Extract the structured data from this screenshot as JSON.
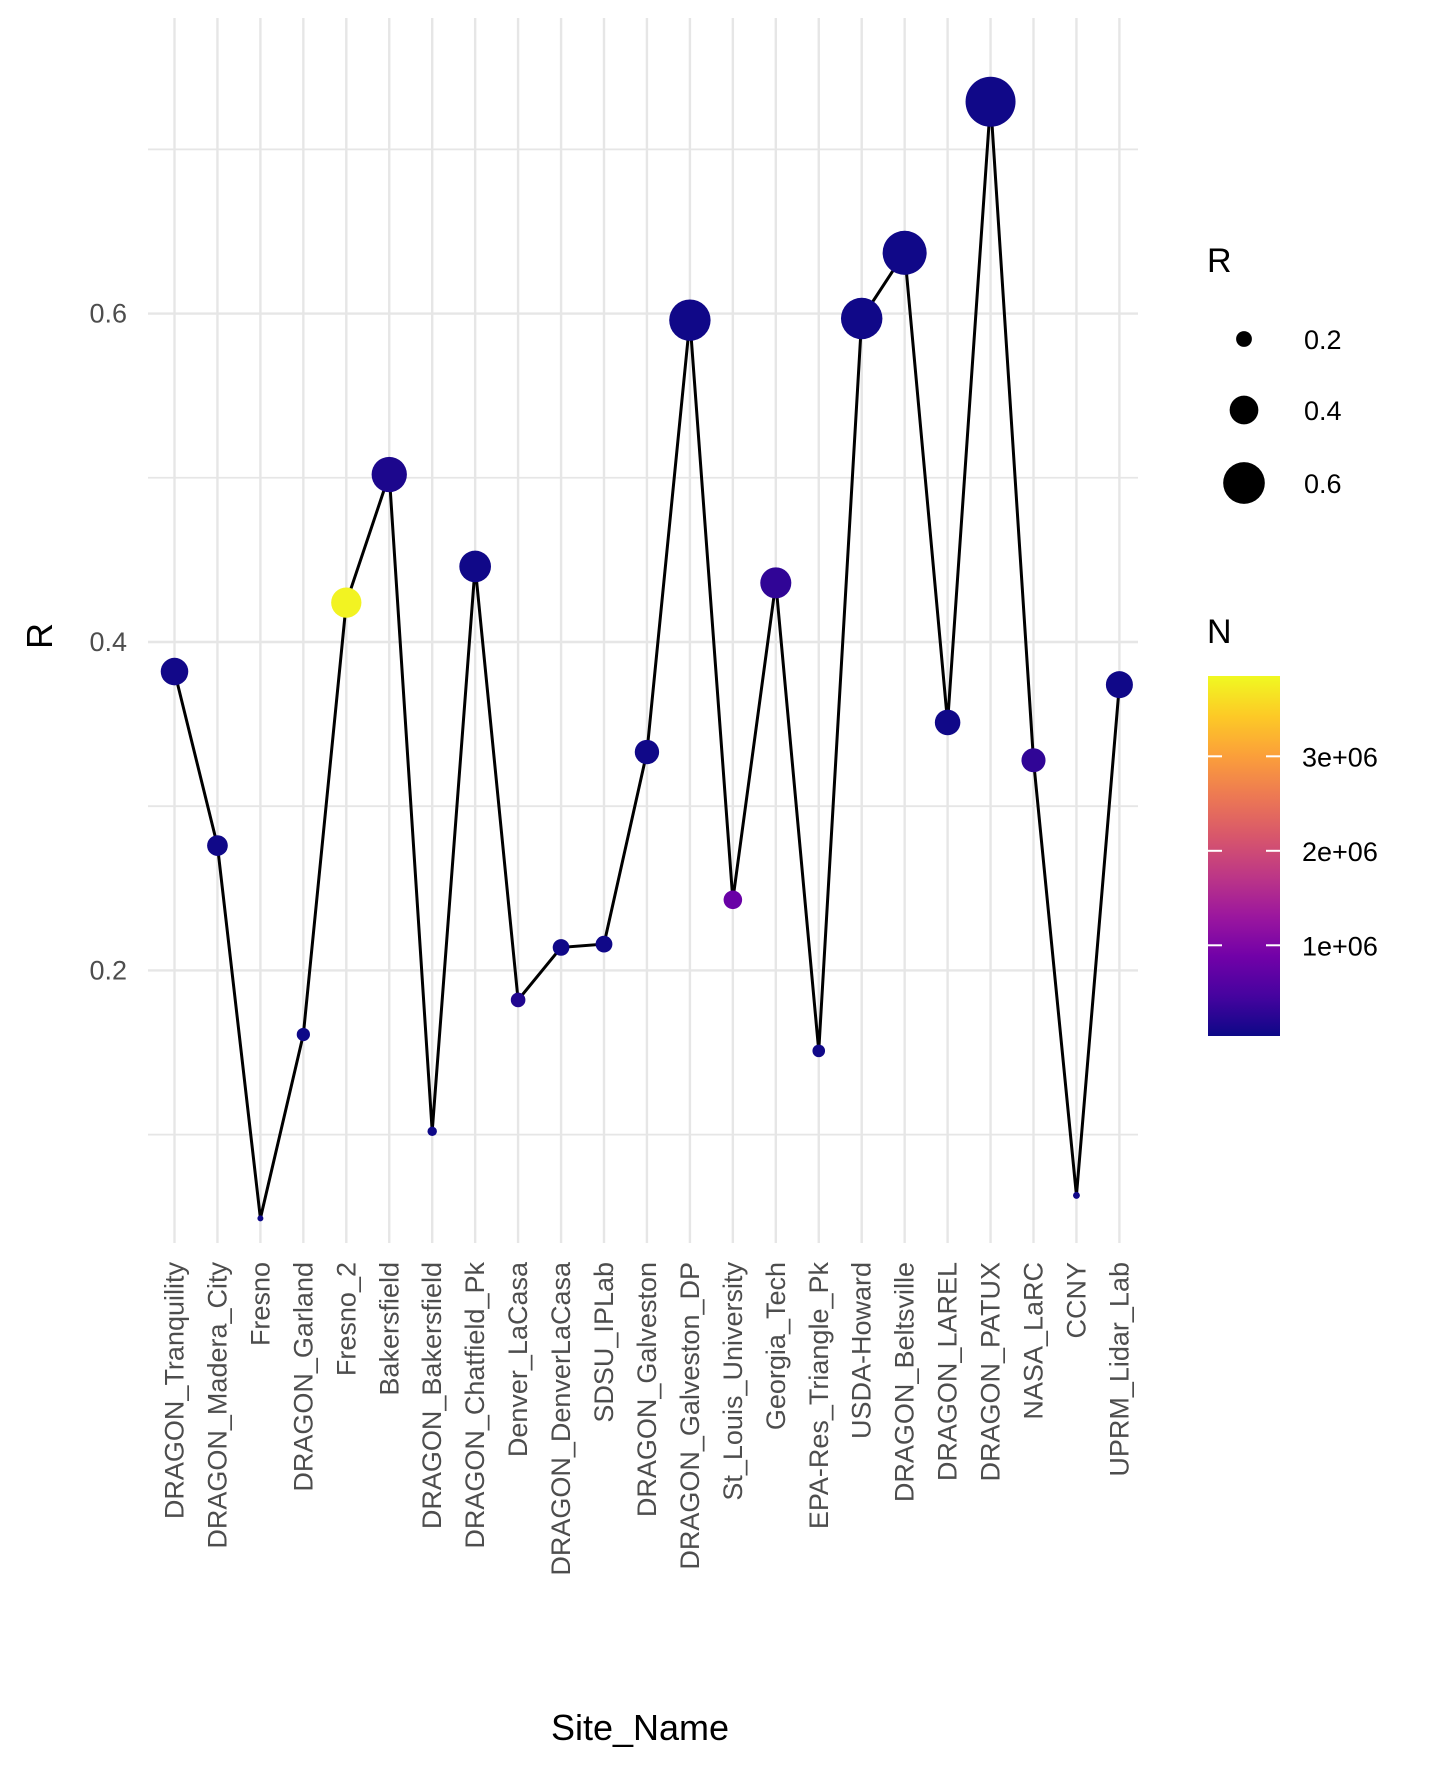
{
  "chart_data": {
    "type": "scatter",
    "xlabel": "Site_Name",
    "ylabel": "R",
    "y_ticks": [
      "0.2",
      "0.4",
      "0.6"
    ],
    "ylim": [
      0.034,
      0.78
    ],
    "grid": true,
    "categories": [
      "DRAGON_Tranquility",
      "DRAGON_Madera_City",
      "Fresno",
      "DRAGON_Garland",
      "Fresno_2",
      "Bakersfield",
      "DRAGON_Bakersfield",
      "DRAGON_Chatfield_Pk",
      "Denver_LaCasa",
      "DRAGON_DenverLaCasa",
      "SDSU_IPLab",
      "DRAGON_Galveston",
      "DRAGON_Galveston_DP",
      "St_Louis_University",
      "Georgia_Tech",
      "EPA-Res_Triangle_Pk",
      "USDA-Howard",
      "DRAGON_Beltsville",
      "DRAGON_LAREL",
      "DRAGON_PATUX",
      "NASA_LaRC",
      "CCNY",
      "UPRM_Lidar_Lab"
    ],
    "series": [
      {
        "values": [
          0.382,
          0.276,
          0.049,
          0.161,
          0.424,
          0.502,
          0.102,
          0.446,
          0.182,
          0.214,
          0.216,
          0.333,
          0.596,
          0.243,
          0.436,
          0.151,
          0.597,
          0.637,
          0.351,
          0.729,
          0.328,
          0.063,
          0.374
        ],
        "n_values": [
          80000,
          60000,
          50000,
          50000,
          3800000,
          150000,
          50000,
          60000,
          180000,
          60000,
          60000,
          60000,
          60000,
          800000,
          300000,
          60000,
          60000,
          60000,
          60000,
          60000,
          300000,
          60000,
          60000
        ]
      }
    ],
    "line_color": "#000000",
    "legend": {
      "position": "right",
      "size": {
        "title": "R",
        "labels": [
          "0.2",
          "0.4",
          "0.6"
        ],
        "values": [
          0.2,
          0.4,
          0.6
        ]
      },
      "color": {
        "title": "N",
        "labels": [
          "1e+06",
          "2e+06",
          "3e+06"
        ],
        "values": [
          1000000,
          2000000,
          3000000
        ],
        "range": [
          40000,
          3850000
        ],
        "palette": "plasma",
        "colors": [
          "#0d0887",
          "#46039f",
          "#7201a8",
          "#9c179e",
          "#bd3786",
          "#d8576b",
          "#ed7953",
          "#fb9f3a",
          "#fdca26",
          "#f0f921"
        ]
      }
    }
  }
}
